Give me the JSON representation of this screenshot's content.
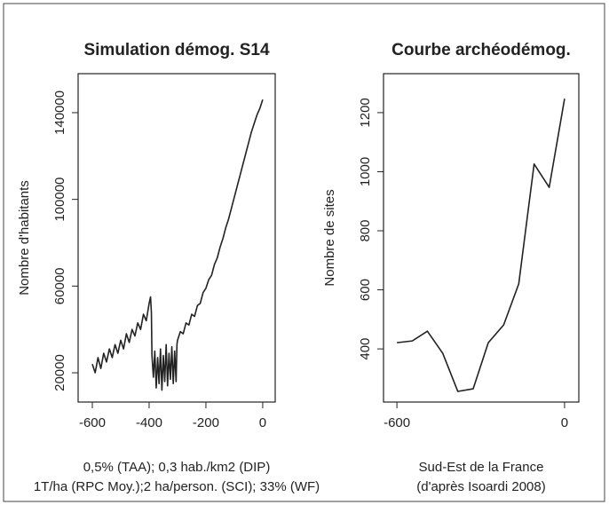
{
  "chart_data": [
    {
      "type": "line",
      "title": "Simulation démog. S14",
      "y_label": "Nombre d'habitants",
      "caption": [
        "0,5% (TAA); 0,3 hab./km2 (DIP)",
        "1T/ha (RPC Moy.);2 ha/person. (SCI); 33% (WF)"
      ],
      "xlim": [
        -650,
        44
      ],
      "ylim": [
        6500,
        158000
      ],
      "xticks": [
        -600,
        -400,
        -200,
        0
      ],
      "yticks": [
        20000,
        60000,
        100000,
        140000
      ],
      "x": [
        -600,
        -590,
        -580,
        -570,
        -560,
        -550,
        -540,
        -530,
        -520,
        -510,
        -500,
        -490,
        -480,
        -470,
        -460,
        -450,
        -440,
        -430,
        -420,
        -410,
        -400,
        -395,
        -392,
        -390,
        -385,
        -380,
        -375,
        -370,
        -365,
        -360,
        -355,
        -350,
        -345,
        -340,
        -335,
        -330,
        -325,
        -320,
        -315,
        -310,
        -305,
        -302,
        -300,
        -290,
        -280,
        -270,
        -260,
        -250,
        -240,
        -230,
        -220,
        -210,
        -200,
        -190,
        -180,
        -170,
        -160,
        -150,
        -140,
        -130,
        -120,
        -110,
        -100,
        -90,
        -80,
        -70,
        -60,
        -50,
        -40,
        -30,
        -20,
        -10,
        0
      ],
      "series": [
        {
          "color": "#222222",
          "values": [
            24000,
            20000,
            27000,
            22000,
            29000,
            25000,
            31000,
            27000,
            33000,
            29000,
            35000,
            31000,
            38000,
            34000,
            40000,
            37000,
            43000,
            40000,
            47000,
            44000,
            52000,
            55000,
            48000,
            28000,
            18000,
            30000,
            13000,
            27000,
            15000,
            31000,
            12000,
            28000,
            16000,
            33000,
            14000,
            29000,
            17000,
            32000,
            15000,
            30000,
            16000,
            33000,
            35000,
            39000,
            38000,
            43000,
            42000,
            47000,
            46000,
            51000,
            52000,
            57000,
            59000,
            63000,
            65000,
            70000,
            73000,
            78000,
            82000,
            87000,
            91000,
            96000,
            101000,
            106000,
            111000,
            116000,
            121000,
            126000,
            131000,
            135000,
            139000,
            142000,
            146000
          ]
        }
      ]
    },
    {
      "type": "line",
      "title": "Courbe archéodémog.",
      "y_label": "Nombre de sites",
      "caption": [
        "Sud-Est de la France",
        "(d'après Isoardi 2008)"
      ],
      "xlim": [
        -648,
        51
      ],
      "ylim": [
        220,
        1332
      ],
      "xticks": [
        -600,
        0
      ],
      "yticks": [
        400,
        600,
        800,
        1000,
        1200
      ],
      "x": [
        -600,
        -545,
        -491,
        -436,
        -382,
        -327,
        -273,
        -218,
        -164,
        -109,
        -55,
        0
      ],
      "series": [
        {
          "color": "#222222",
          "values": [
            421,
            427,
            460,
            385,
            256,
            265,
            421,
            481,
            620,
            1026,
            947,
            1247
          ]
        }
      ]
    }
  ]
}
